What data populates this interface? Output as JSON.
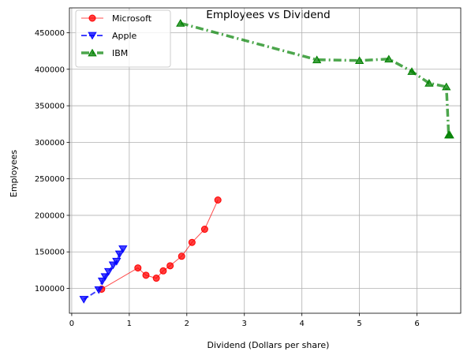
{
  "chart_data": {
    "type": "line",
    "title": "Employees vs Dividend",
    "xlabel": "Dividend (Dollars per share)",
    "ylabel": "Employees",
    "xlim": [
      -0.04,
      6.76
    ],
    "ylim": [
      66000,
      484000
    ],
    "xticks": [
      0,
      1,
      2,
      3,
      4,
      5,
      6
    ],
    "yticks": [
      100000,
      150000,
      200000,
      250000,
      300000,
      350000,
      400000,
      450000
    ],
    "grid": true,
    "legend_position": "top-left",
    "series": [
      {
        "name": "Microsoft",
        "color": "#ff0000",
        "marker": "circle",
        "line_style": "solid",
        "x": [
          0.52,
          1.15,
          1.29,
          1.47,
          1.59,
          1.71,
          1.91,
          2.09,
          2.31,
          2.54
        ],
        "y": [
          99000,
          128000,
          118000,
          114000,
          124000,
          131000,
          144000,
          163000,
          181000,
          221000
        ]
      },
      {
        "name": "Apple",
        "color": "#0000ff",
        "marker": "triangle-down",
        "line_style": "dashed",
        "x": [
          0.21,
          0.47,
          0.53,
          0.58,
          0.64,
          0.72,
          0.78,
          0.83,
          0.89
        ],
        "y": [
          85000,
          98000,
          110000,
          116000,
          123000,
          132000,
          137000,
          147000,
          154000
        ]
      },
      {
        "name": "IBM",
        "color": "#008000",
        "marker": "triangle-up",
        "line_style": "dashdot",
        "x": [
          1.89,
          4.26,
          5.0,
          5.51,
          5.91,
          6.21,
          6.51,
          6.55,
          6.57
        ],
        "y": [
          463000,
          413000,
          412000,
          414000,
          397000,
          381000,
          376000,
          310000,
          310000
        ]
      }
    ]
  }
}
